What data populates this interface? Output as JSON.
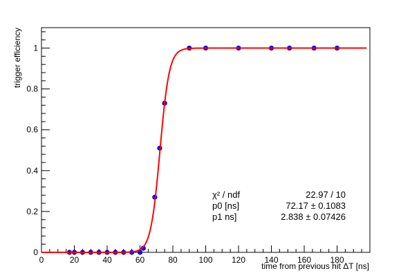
{
  "chart_data": {
    "type": "scatter",
    "xlabel": "time from previous hit ΔT [ns]",
    "ylabel": "trigger efficiency",
    "xlim": [
      0,
      200
    ],
    "ylim": [
      0,
      1.1
    ],
    "x_ticks": [
      "0",
      "20",
      "40",
      "60",
      "80",
      "100",
      "120",
      "140",
      "160",
      "180"
    ],
    "y_ticks": [
      "0",
      "0.2",
      "0.4",
      "0.6",
      "0.8",
      "1"
    ],
    "points": {
      "color": "#0000ff",
      "x": [
        17,
        20,
        25,
        30,
        35,
        40,
        45,
        50,
        55,
        60,
        62,
        69,
        72,
        75,
        90,
        100,
        120,
        140,
        151,
        166,
        180
      ],
      "y": [
        0,
        0,
        0,
        0,
        0,
        0,
        0,
        0,
        0,
        0,
        0.02,
        0.27,
        0.51,
        0.73,
        1,
        1,
        1,
        1,
        1,
        1,
        1
      ]
    },
    "fit": {
      "color": "#ff0000",
      "function": "sigmoid",
      "p0": 72.17,
      "p1": 2.838
    },
    "stats": [
      {
        "label": "χ² / ndf",
        "value": "22.97 / 10"
      },
      {
        "label": "p0 [ns]",
        "value": "72.17 ± 0.1083"
      },
      {
        "label": "p1 ns]",
        "value": "2.838 ± 0.07426"
      }
    ],
    "grid": false
  }
}
